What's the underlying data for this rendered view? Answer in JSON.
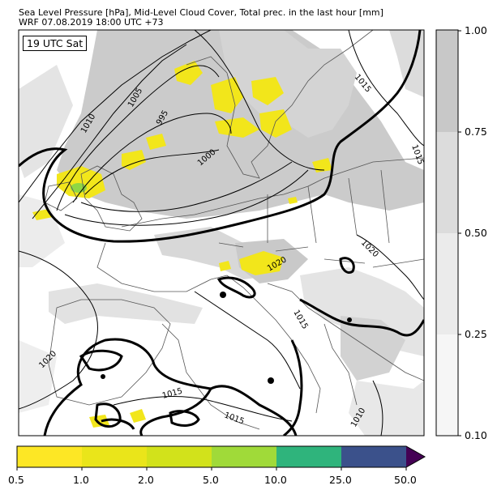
{
  "title": {
    "line1": "Sea Level Pressure [hPa], Mid-Level Cloud Cover, Total prec. in the last hour [mm]",
    "line2": "WRF 07.08.2019 18:00 UTC +73"
  },
  "time_label": "19 UTC Sat",
  "isobar_labels": [
    "1015",
    "1010",
    "1005",
    "995",
    "1000",
    "1020",
    "1020",
    "1020",
    "1015",
    "1015",
    "1015",
    "1010",
    "1015"
  ],
  "cloud_colorbar": {
    "ticks": [
      "1.00",
      "0.75",
      "0.50",
      "0.25",
      "0.10"
    ],
    "colors": [
      "#c8c8c8",
      "#dcdcdc",
      "#ebebeb",
      "#f6f6f6"
    ]
  },
  "precip_colorbar": {
    "ticks": [
      "0.5",
      "1.0",
      "2.0",
      "5.0",
      "10.0",
      "25.0",
      "50.0"
    ],
    "colors": [
      "#fde725",
      "#eae51a",
      "#d2e21b",
      "#a0da39",
      "#2fb47c",
      "#3b518b",
      "#440154"
    ]
  },
  "colors": {
    "coast": "#555555",
    "isobar": "#000000",
    "cloud_dark": "#c8c8c8",
    "cloud_light": "#e6e6e6",
    "rain": "#f2e61b",
    "rain_green": "#8fd744"
  }
}
